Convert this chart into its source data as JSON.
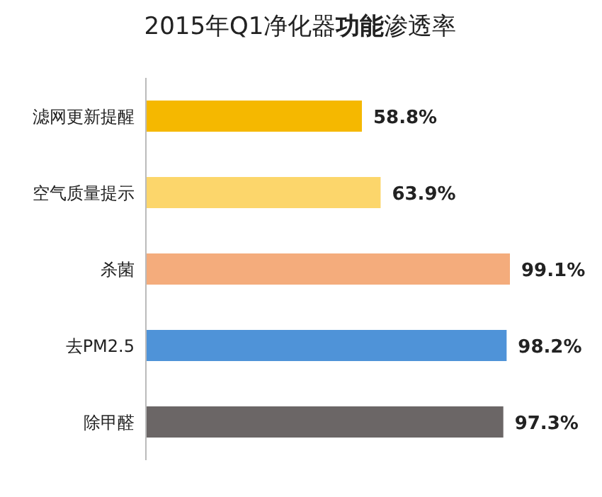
{
  "chart_data": {
    "type": "bar",
    "orientation": "horizontal",
    "title": "2015年Q1净化器**功能**渗透率",
    "categories": [
      "滤网更新提醒",
      "空气质量提示",
      "杀菌",
      "去PM2.5",
      "除甲醛"
    ],
    "values": [
      58.8,
      63.9,
      99.1,
      98.2,
      97.3
    ],
    "value_labels": [
      "58.8%",
      "63.9%",
      "99.1%",
      "98.2%",
      "97.3%"
    ],
    "colors": [
      "#f5b800",
      "#fcd66b",
      "#f4ac7c",
      "#4f93d8",
      "#6b6666"
    ]
  }
}
